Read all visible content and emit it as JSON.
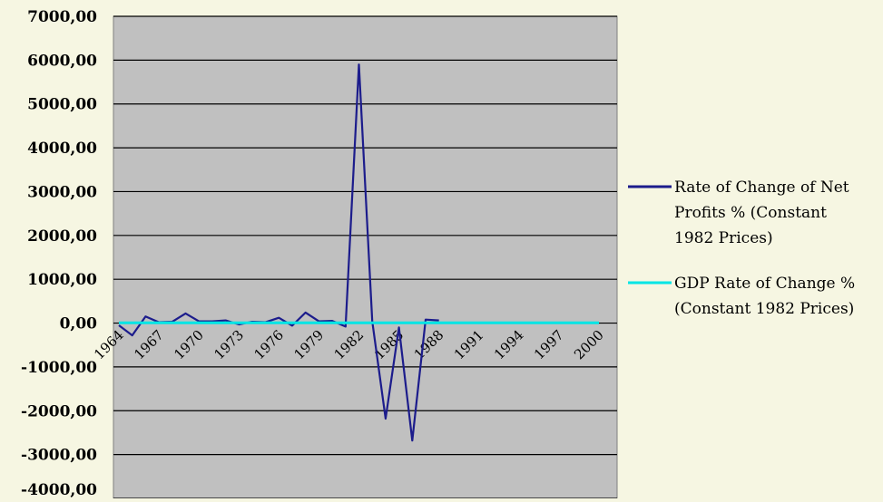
{
  "chart_data": {
    "type": "line",
    "title": "",
    "xlabel": "",
    "ylabel": "",
    "ylim": [
      -4000,
      7000
    ],
    "yticks": [
      "7000,00",
      "6000,00",
      "5000,00",
      "4000,00",
      "3000,00",
      "2000,00",
      "1000,00",
      "0,00",
      "-1000,00",
      "-2000,00",
      "-3000,00",
      "-4000,00"
    ],
    "xticks": [
      "1964",
      "1967",
      "1970",
      "1973",
      "1976",
      "1979",
      "1982",
      "1985",
      "1988",
      "1991",
      "1994",
      "1997",
      "2000"
    ],
    "x": [
      1964,
      1965,
      1966,
      1967,
      1968,
      1969,
      1970,
      1971,
      1972,
      1973,
      1974,
      1975,
      1976,
      1977,
      1978,
      1979,
      1980,
      1981,
      1982,
      1983,
      1984,
      1985,
      1986,
      1987,
      1988,
      1989,
      1990,
      1991,
      1992,
      1993,
      1994,
      1995,
      1996,
      1997,
      1998,
      1999,
      2000
    ],
    "grid": true,
    "legend_position": "right",
    "plot_background": "#c0c0c0",
    "series": [
      {
        "name": "Rate of Change of Net Profits % (Constant 1982 Prices)",
        "color": "#1c1c8c",
        "values": [
          -50,
          -280,
          150,
          20,
          30,
          220,
          40,
          40,
          60,
          -30,
          30,
          20,
          120,
          -60,
          240,
          40,
          50,
          -80,
          5900,
          40,
          -2180,
          -100,
          -2680,
          80,
          60,
          null,
          null,
          null,
          null,
          null,
          null,
          null,
          null,
          null,
          null,
          null,
          null
        ]
      },
      {
        "name": "GDP Rate of Change % (Constant 1982 Prices)",
        "color": "#00e5e5",
        "values": [
          5,
          5,
          5,
          5,
          5,
          5,
          5,
          5,
          5,
          5,
          5,
          5,
          5,
          5,
          5,
          5,
          5,
          5,
          5,
          5,
          5,
          5,
          5,
          5,
          5,
          5,
          5,
          5,
          5,
          5,
          5,
          5,
          5,
          5,
          5,
          5,
          5
        ]
      }
    ]
  },
  "legend": {
    "series1_lines": [
      "Rate of Change of Net",
      "Profits % (Constant",
      "1982 Prices)"
    ],
    "series2_lines": [
      "GDP Rate of Change %",
      "(Constant 1982 Prices)"
    ]
  }
}
